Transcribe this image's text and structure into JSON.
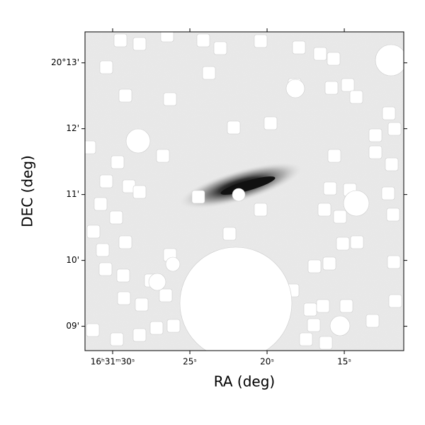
{
  "chart_data": {
    "type": "image",
    "xlabel": "RA (deg)",
    "ylabel": "DEC (deg)",
    "xlim": [
      31.79,
      11.15
    ],
    "xticks": [
      {
        "value": 30,
        "label": "16ʰ31ᵐ30ˢ"
      },
      {
        "value": 25,
        "label": "25ˢ"
      },
      {
        "value": 20,
        "label": "20ˢ"
      },
      {
        "value": 15,
        "label": "15ˢ"
      }
    ],
    "ylim": [
      8.63,
      13.47
    ],
    "yticks": [
      {
        "value": 13,
        "label": "20°13'"
      },
      {
        "value": 12,
        "label": "12'"
      },
      {
        "value": 11,
        "label": "11'"
      },
      {
        "value": 10,
        "label": "10'"
      },
      {
        "value": 9,
        "label": "09'"
      }
    ],
    "colormap": "gray_r"
  }
}
